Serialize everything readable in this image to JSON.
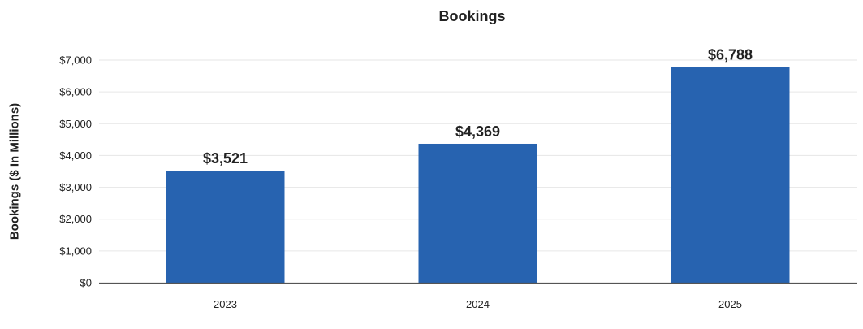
{
  "chart_data": {
    "type": "bar",
    "title": "Bookings",
    "xlabel": "",
    "ylabel": "Bookings ($ In Millions)",
    "categories": [
      "2023",
      "2024",
      "2025"
    ],
    "series": [
      {
        "values": [
          3521,
          4369,
          6788
        ],
        "data_labels": [
          "$3,521",
          "$4,369",
          "$6,788"
        ]
      }
    ],
    "ylim": [
      0,
      7000
    ],
    "yticks": [
      0,
      1000,
      2000,
      3000,
      4000,
      5000,
      6000,
      7000
    ],
    "ytick_labels": [
      "$0",
      "$1,000",
      "$2,000",
      "$3,000",
      "$4,000",
      "$5,000",
      "$6,000",
      "$7,000"
    ],
    "grid": true,
    "legend": "none",
    "colors": {
      "bar": "#2763b0",
      "grid": "#e6e6e6",
      "axis": "#555555",
      "text": "#222222"
    }
  }
}
